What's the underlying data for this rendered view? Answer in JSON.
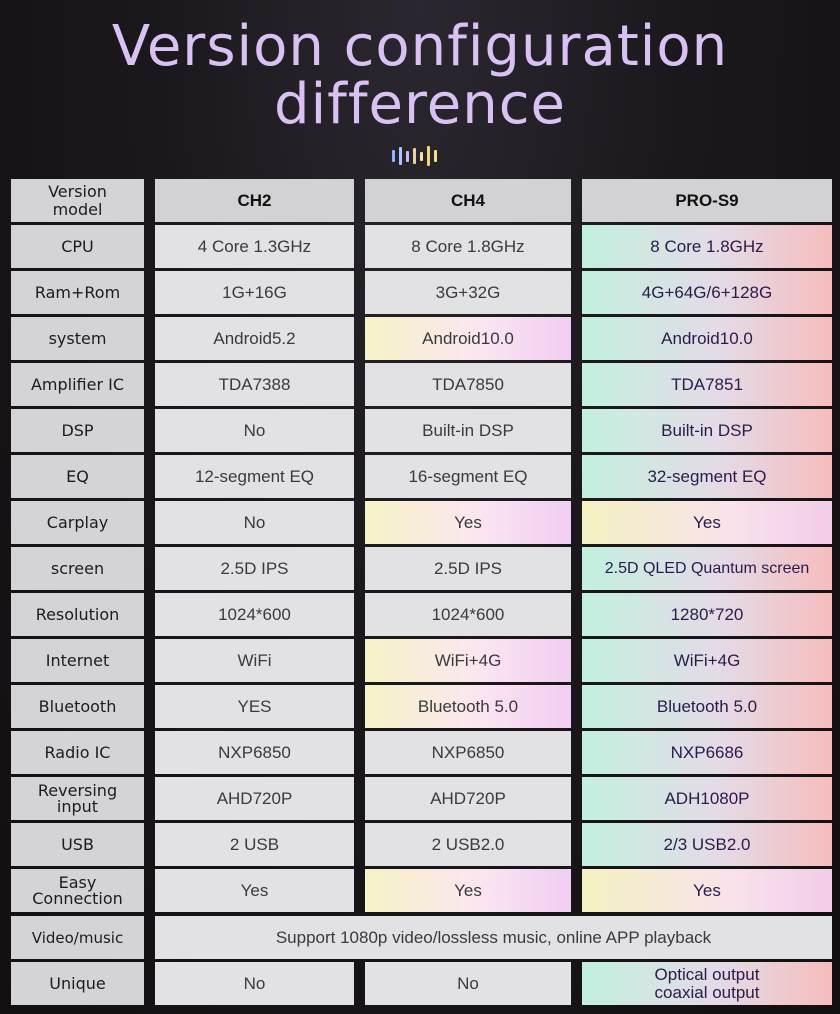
{
  "title": {
    "line1": "Version configuration",
    "line2": "difference"
  },
  "header": {
    "label": "Version model",
    "col1": "CH2",
    "col2": "CH4",
    "col3": "PRO-S9"
  },
  "rows": [
    {
      "label": "CPU",
      "ch2": "4 Core  1.3GHz",
      "ch4": "8 Core 1.8GHz",
      "pro": "8 Core 1.8GHz"
    },
    {
      "label": "Ram+Rom",
      "ch2": "1G+16G",
      "ch4": "3G+32G",
      "pro": "4G+64G/6+128G"
    },
    {
      "label": "system",
      "ch2": "Android5.2",
      "ch4": "Android10.0",
      "pro": "Android10.0"
    },
    {
      "label": "Amplifier IC",
      "ch2": "TDA7388",
      "ch4": "TDA7850",
      "pro": "TDA7851"
    },
    {
      "label": "DSP",
      "ch2": "No",
      "ch4": "Built-in DSP",
      "pro": "Built-in DSP"
    },
    {
      "label": "EQ",
      "ch2": "12-segment EQ",
      "ch4": "16-segment EQ",
      "pro": "32-segment EQ"
    },
    {
      "label": "Carplay",
      "ch2": "No",
      "ch4": "Yes",
      "pro": "Yes"
    },
    {
      "label": "screen",
      "ch2": "2.5D IPS",
      "ch4": "2.5D IPS",
      "pro": "2.5D QLED Quantum screen"
    },
    {
      "label": "Resolution",
      "ch2": "1024*600",
      "ch4": "1024*600",
      "pro": "1280*720"
    },
    {
      "label": "Internet",
      "ch2": "WiFi",
      "ch4": "WiFi+4G",
      "pro": "WiFi+4G"
    },
    {
      "label": "Bluetooth",
      "ch2": "YES",
      "ch4": "Bluetooth 5.0",
      "pro": "Bluetooth 5.0"
    },
    {
      "label": "Radio IC",
      "ch2": "NXP6850",
      "ch4": "NXP6850",
      "pro": "NXP6686"
    },
    {
      "label": "Reversing input",
      "ch2": "AHD720P",
      "ch4": "AHD720P",
      "pro": "ADH1080P"
    },
    {
      "label": "USB",
      "ch2": "2 USB",
      "ch4": "2 USB2.0",
      "pro": "2/3 USB2.0"
    },
    {
      "label": "Easy Connection",
      "ch2": "Yes",
      "ch4": "Yes",
      "pro": "Yes"
    }
  ],
  "video_row": {
    "label": "Video/music",
    "value": "Support 1080p video/lossless music, online APP playback"
  },
  "unique_row": {
    "label": "Unique",
    "ch2": "No",
    "ch4": "No",
    "pro_line1": "Optical output",
    "pro_line2": "coaxial output"
  },
  "colors": {
    "title": "#d9c2f3",
    "label_bg": "#d4d4d7",
    "cell_bg": "#e2e2e5",
    "pro_text": "#2a1b4a"
  }
}
